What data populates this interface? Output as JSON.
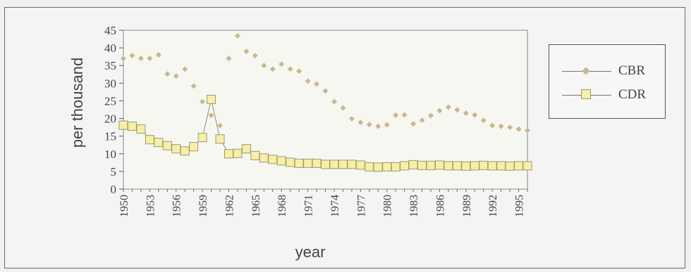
{
  "chart_data": {
    "type": "line",
    "xlabel": "year",
    "ylabel": "per thousand",
    "ylim": [
      0,
      45
    ],
    "yticks": [
      "0",
      "5",
      "10",
      "15",
      "20",
      "25",
      "30",
      "35",
      "40",
      "45"
    ],
    "xlim": [
      1950,
      1996
    ],
    "xticks": [
      "1950",
      "1953",
      "1956",
      "1959",
      "1962",
      "1965",
      "1968",
      "1971",
      "1974",
      "1977",
      "1980",
      "1983",
      "1986",
      "1989",
      "1992",
      "1995"
    ],
    "x": [
      1950,
      1951,
      1952,
      1953,
      1954,
      1955,
      1956,
      1957,
      1958,
      1959,
      1960,
      1961,
      1962,
      1963,
      1964,
      1965,
      1966,
      1967,
      1968,
      1969,
      1970,
      1971,
      1972,
      1973,
      1974,
      1975,
      1976,
      1977,
      1978,
      1979,
      1980,
      1981,
      1982,
      1983,
      1984,
      1985,
      1986,
      1987,
      1988,
      1989,
      1990,
      1991,
      1992,
      1993,
      1994,
      1995,
      1996
    ],
    "grid": false,
    "legend_position": "right",
    "series": [
      {
        "name": "CBR",
        "marker": "diamond",
        "color": "#c9b98a",
        "values": [
          37,
          37.8,
          37,
          37,
          38,
          32.6,
          32,
          34,
          29.2,
          24.8,
          20.9,
          18,
          37,
          43.4,
          39,
          37.8,
          35,
          34,
          35.4,
          34,
          33.4,
          30.6,
          29.8,
          27.8,
          24.8,
          23,
          19.9,
          18.9,
          18.3,
          17.8,
          18.2,
          20.9,
          21,
          18.5,
          19.5,
          20.8,
          22.2,
          23.2,
          22.4,
          21.5,
          21,
          19.5,
          18,
          17.8,
          17.5,
          17,
          16.6
        ]
      },
      {
        "name": "CDR",
        "marker": "square",
        "color": "#f6efa6",
        "values": [
          18.1,
          17.8,
          17,
          14,
          13.2,
          12.3,
          11.4,
          10.8,
          12,
          14.6,
          25.4,
          14.2,
          10,
          10.1,
          11.4,
          9.5,
          8.8,
          8.4,
          8,
          7.6,
          7.3,
          7.3,
          7.3,
          7,
          7,
          7,
          7,
          6.8,
          6.3,
          6.2,
          6.3,
          6.3,
          6.6,
          6.9,
          6.7,
          6.7,
          6.8,
          6.6,
          6.6,
          6.5,
          6.6,
          6.7,
          6.6,
          6.6,
          6.5,
          6.6,
          6.6
        ]
      }
    ]
  }
}
